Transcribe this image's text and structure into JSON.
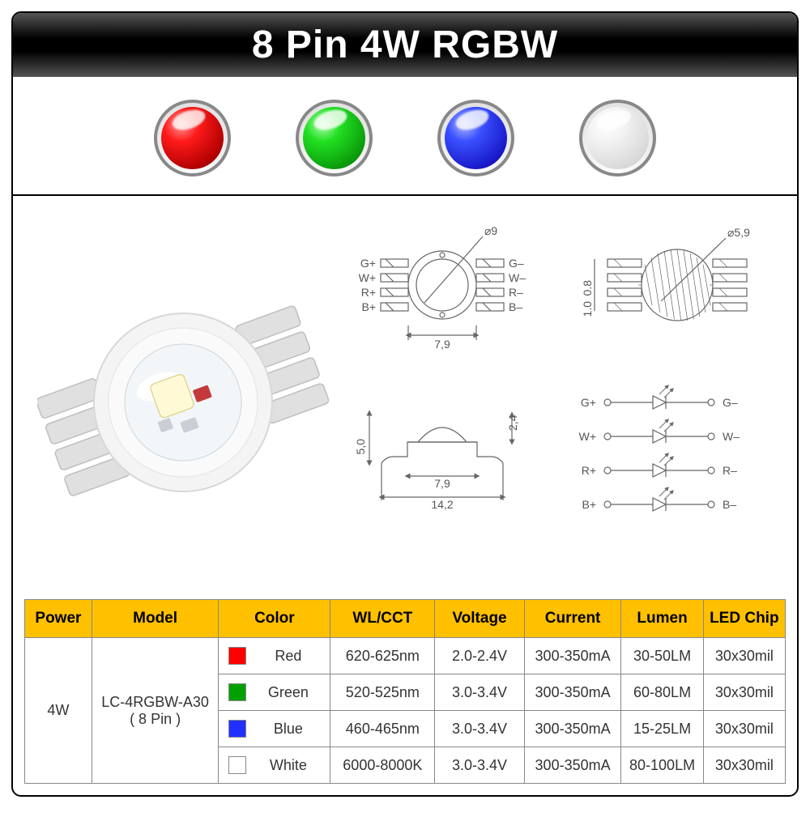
{
  "title": "8 Pin 4W RGBW",
  "orbs": [
    "red",
    "green",
    "blue",
    "white"
  ],
  "table": {
    "headers": [
      "Power",
      "Model",
      "Color",
      "WL/CCT",
      "Voltage",
      "Current",
      "Lumen",
      "LED Chip"
    ],
    "col_widths": [
      "9%",
      "17%",
      "15%",
      "14%",
      "12%",
      "13%",
      "11%",
      "11%"
    ],
    "header_bg": "#ffc000",
    "power": "4W",
    "model_line1": "LC-4RGBW-A30",
    "model_line2": "( 8 Pin )",
    "rows": [
      {
        "swatch": "#ff0000",
        "color": "Red",
        "wl": "620-625nm",
        "v": "2.0-2.4V",
        "i": "300-350mA",
        "lm": "30-50LM",
        "chip": "30x30mil"
      },
      {
        "swatch": "#00a000",
        "color": "Green",
        "wl": "520-525nm",
        "v": "3.0-3.4V",
        "i": "300-350mA",
        "lm": "60-80LM",
        "chip": "30x30mil"
      },
      {
        "swatch": "#2030ff",
        "color": "Blue",
        "wl": "460-465nm",
        "v": "3.0-3.4V",
        "i": "300-350mA",
        "lm": "15-25LM",
        "chip": "30x30mil"
      },
      {
        "swatch": "#ffffff",
        "color": "White",
        "wl": "6000-8000K",
        "v": "3.0-3.4V",
        "i": "300-350mA",
        "lm": "80-100LM",
        "chip": "30x30mil"
      }
    ]
  },
  "diagram": {
    "stroke": "#666666",
    "font": 14,
    "top_view": {
      "diameter_label": "⌀9",
      "width_label": "7,9",
      "pins_left": [
        "G+",
        "W+",
        "R+",
        "B+"
      ],
      "pins_right": [
        "G–",
        "W–",
        "R–",
        "B–"
      ]
    },
    "detail_view": {
      "diameter_label": "⌀5,9",
      "dim_a": "0.8",
      "dim_b": "1.0"
    },
    "side_view": {
      "height": "5,0",
      "dome_h": "2,4",
      "body_w": "7,9",
      "total_w": "14,2"
    },
    "schematic": {
      "rows": [
        {
          "pos": "G+",
          "neg": "G–"
        },
        {
          "pos": "W+",
          "neg": "W–"
        },
        {
          "pos": "R+",
          "neg": "R–"
        },
        {
          "pos": "B+",
          "neg": "B–"
        }
      ]
    }
  }
}
